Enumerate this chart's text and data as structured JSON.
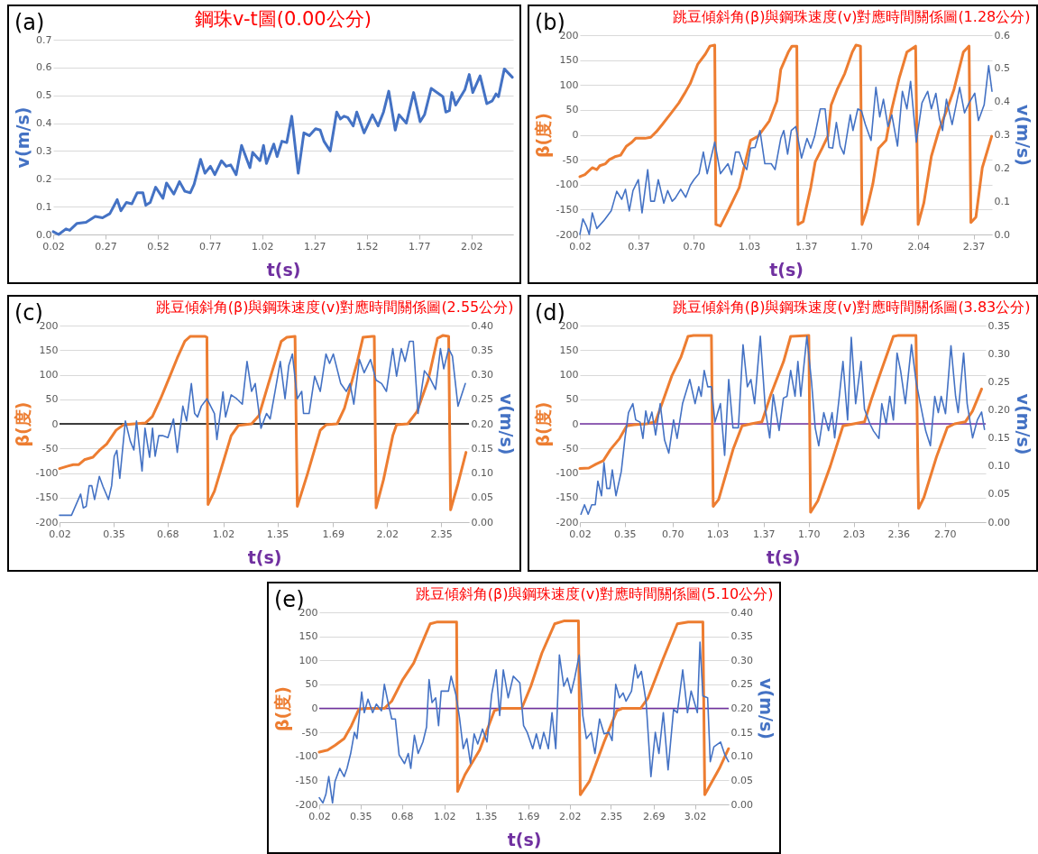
{
  "chart_data": [
    {
      "type": "line",
      "title": "鋼珠v-t圖(0.00公分)",
      "xlabel": "t(s)",
      "ylabel": "v(m/s)",
      "annotations": [
        "(a)"
      ],
      "grid": "y",
      "xlim": [
        0.02,
        2.22
      ],
      "xticks": [
        0.02,
        0.27,
        0.52,
        0.77,
        1.02,
        1.27,
        1.52,
        1.77,
        2.02
      ],
      "ylim": [
        0,
        0.7
      ],
      "yticks": [
        {
          "value": 0,
          "label": "0.0"
        },
        0.1,
        0.2,
        0.3,
        0.4,
        0.5,
        0.6,
        0.7
      ],
      "series": [
        {
          "color": "#4472c4",
          "x": [
            0.02,
            0.046,
            0.081,
            0.099,
            0.134,
            0.177,
            0.221,
            0.256,
            0.291,
            0.326,
            0.344,
            0.37,
            0.396,
            0.422,
            0.449,
            0.463,
            0.484,
            0.51,
            0.545,
            0.562,
            0.597,
            0.624,
            0.65,
            0.676,
            0.694,
            0.725,
            0.746,
            0.772,
            0.793,
            0.825,
            0.848,
            0.869,
            0.895,
            0.921,
            0.961,
            0.974,
            1.009,
            1.026,
            1.04,
            1.075,
            1.091,
            1.114,
            1.137,
            1.161,
            1.192,
            1.219,
            1.245,
            1.275,
            1.297,
            1.315,
            1.345,
            1.376,
            1.394,
            1.411,
            1.429,
            1.455,
            1.472,
            1.507,
            1.547,
            1.574,
            1.6,
            1.625,
            1.656,
            1.674,
            1.709,
            1.744,
            1.775,
            1.796,
            1.828,
            1.866,
            1.884,
            1.898,
            1.915,
            1.927,
            1.945,
            1.989,
            2.01,
            2.027,
            2.062,
            2.094,
            2.12,
            2.138,
            2.15,
            2.178,
            2.216
          ],
          "values": [
            0.01,
            0.0,
            0.02,
            0.015,
            0.04,
            0.044,
            0.065,
            0.06,
            0.075,
            0.125,
            0.085,
            0.115,
            0.11,
            0.15,
            0.15,
            0.105,
            0.115,
            0.17,
            0.13,
            0.185,
            0.145,
            0.19,
            0.155,
            0.15,
            0.18,
            0.27,
            0.22,
            0.245,
            0.215,
            0.265,
            0.245,
            0.25,
            0.215,
            0.32,
            0.24,
            0.295,
            0.265,
            0.32,
            0.255,
            0.325,
            0.28,
            0.335,
            0.33,
            0.425,
            0.22,
            0.365,
            0.355,
            0.38,
            0.375,
            0.335,
            0.3,
            0.44,
            0.415,
            0.425,
            0.42,
            0.39,
            0.44,
            0.365,
            0.43,
            0.39,
            0.44,
            0.515,
            0.375,
            0.43,
            0.4,
            0.51,
            0.405,
            0.43,
            0.525,
            0.505,
            0.495,
            0.44,
            0.445,
            0.51,
            0.465,
            0.52,
            0.575,
            0.51,
            0.57,
            0.47,
            0.48,
            0.505,
            0.495,
            0.595,
            0.565
          ]
        }
      ]
    },
    {
      "type": "line",
      "title": "跳豆傾斜角(β)與鋼珠速度(v)對應時間關係圖(1.28公分)",
      "xlabel": "t(s)",
      "ylabel": "β(度)",
      "y2label": "v(m/s)",
      "annotations": [
        "(b)"
      ],
      "grid": "y",
      "xlim": [
        0.02,
        2.48
      ],
      "xticks": [
        0.02,
        0.37,
        {
          "value": 0.7,
          "label": "0.70"
        },
        1.03,
        1.37,
        {
          "value": 1.7,
          "label": "1.70"
        },
        2.04,
        2.37
      ],
      "ylim": [
        -200,
        200
      ],
      "yticks": [
        -200,
        -150,
        -100,
        -50,
        0,
        50,
        100,
        150,
        200
      ],
      "y2lim": [
        0,
        0.6
      ],
      "y2ticks": [
        {
          "value": 0,
          "label": "0.0"
        },
        0.1,
        0.2,
        0.3,
        0.4,
        0.5,
        0.6
      ],
      "series": [
        {
          "color": "#ed7d31",
          "x": [
            0.02,
            0.05,
            0.094,
            0.121,
            0.139,
            0.173,
            0.195,
            0.229,
            0.263,
            0.297,
            0.33,
            0.353,
            0.409,
            0.443,
            0.476,
            0.51,
            0.566,
            0.611,
            0.645,
            0.679,
            0.724,
            0.769,
            0.796,
            0.825,
            0.832,
            0.859,
            0.904,
            0.971,
            1.039,
            1.084,
            1.151,
            1.196,
            1.219,
            1.264,
            1.286,
            1.315,
            1.322,
            1.353,
            1.398,
            1.425,
            1.466,
            1.5,
            1.52,
            1.556,
            1.601,
            1.646,
            1.668,
            1.695,
            1.704,
            1.731,
            1.769,
            1.803,
            1.848,
            1.882,
            1.927,
            1.972,
            2.024,
            2.039,
            2.073,
            2.118,
            2.163,
            2.208,
            2.253,
            2.309,
            2.343,
            2.354,
            2.384,
            2.422,
            2.478
          ],
          "values": [
            -84,
            -80,
            -66,
            -70,
            -62,
            -58,
            -50,
            -44,
            -41,
            -23,
            -15,
            -7,
            -7,
            -5,
            6,
            20,
            44,
            64,
            83,
            103,
            142,
            162,
            178,
            180,
            -180,
            -183,
            -153,
            -106,
            -11,
            -3,
            28,
            68,
            131,
            166,
            178,
            178,
            -180,
            -174,
            -106,
            -54,
            -27,
            -3,
            60,
            91,
            123,
            166,
            180,
            178,
            -180,
            -153,
            -98,
            -27,
            -11,
            52,
            115,
            166,
            178,
            -180,
            -137,
            -43,
            9,
            48,
            91,
            166,
            178,
            -176,
            -165,
            -66,
            -3
          ]
        },
        {
          "color": "#4472c4",
          "axis": "y2",
          "x": [
            0.02,
            0.038,
            0.06,
            0.076,
            0.094,
            0.121,
            0.162,
            0.207,
            0.24,
            0.27,
            0.292,
            0.315,
            0.337,
            0.369,
            0.391,
            0.425,
            0.443,
            0.465,
            0.488,
            0.521,
            0.544,
            0.571,
            0.589,
            0.622,
            0.652,
            0.679,
            0.701,
            0.731,
            0.757,
            0.78,
            0.825,
            0.859,
            0.904,
            0.926,
            0.949,
            0.971,
            0.994,
            1.016,
            1.039,
            1.066,
            1.095,
            1.124,
            1.162,
            1.185,
            1.219,
            1.237,
            1.26,
            1.282,
            1.309,
            1.343,
            1.376,
            1.398,
            1.421,
            1.455,
            1.484,
            1.506,
            1.529,
            1.551,
            1.574,
            1.596,
            1.634,
            1.65,
            1.679,
            1.701,
            1.724,
            1.758,
            1.787,
            1.81,
            1.832,
            1.859,
            1.882,
            1.916,
            1.945,
            1.972,
            1.994,
            2.028,
            2.062,
            2.096,
            2.118,
            2.145,
            2.167,
            2.185,
            2.208,
            2.242,
            2.287,
            2.316,
            2.343,
            2.377,
            2.399,
            2.433,
            2.46,
            2.48
          ],
          "values": [
            0.0,
            0.047,
            0.024,
            0.0,
            0.065,
            0.018,
            0.041,
            0.071,
            0.13,
            0.106,
            0.136,
            0.071,
            0.132,
            0.165,
            0.065,
            0.195,
            0.1,
            0.1,
            0.165,
            0.094,
            0.132,
            0.1,
            0.109,
            0.136,
            0.112,
            0.148,
            0.165,
            0.183,
            0.248,
            0.183,
            0.278,
            0.183,
            0.213,
            0.18,
            0.248,
            0.248,
            0.213,
            0.195,
            0.26,
            0.262,
            0.313,
            0.213,
            0.213,
            0.195,
            0.289,
            0.313,
            0.242,
            0.313,
            0.325,
            0.23,
            0.289,
            0.26,
            0.295,
            0.378,
            0.378,
            0.262,
            0.26,
            0.337,
            0.266,
            0.242,
            0.36,
            0.313,
            0.378,
            0.372,
            0.331,
            0.283,
            0.443,
            0.354,
            0.407,
            0.325,
            0.36,
            0.266,
            0.431,
            0.378,
            0.461,
            0.278,
            0.396,
            0.431,
            0.378,
            0.425,
            0.348,
            0.313,
            0.407,
            0.331,
            0.443,
            0.366,
            0.396,
            0.425,
            0.343,
            0.39,
            0.508,
            0.431
          ]
        }
      ]
    },
    {
      "type": "line",
      "title": "跳豆傾斜角(β)與鋼珠速度(v)對應時間關係圖(2.55公分)",
      "xlabel": "t(s)",
      "ylabel": "β(度)",
      "y2label": "v(m/s)",
      "annotations": [
        "(c)"
      ],
      "grid": "y",
      "xlim": [
        0.02,
        2.52
      ],
      "xticks": [
        0.02,
        0.35,
        0.68,
        1.02,
        1.35,
        1.69,
        2.02,
        2.35
      ],
      "ylim": [
        -200,
        200
      ],
      "yticks": [
        -200,
        -150,
        -100,
        -50,
        0,
        50,
        100,
        150,
        200
      ],
      "y2lim": [
        0,
        0.4
      ],
      "y2ticks": [
        {
          "value": 0,
          "label": "0.00"
        },
        0.05,
        {
          "value": 0.1,
          "label": "0.10"
        },
        0.15,
        {
          "value": 0.2,
          "label": "0.20"
        },
        0.25,
        {
          "value": 0.3,
          "label": "0.30"
        },
        0.35,
        {
          "value": 0.4,
          "label": "0.40"
        }
      ],
      "ref_lines": [
        {
          "axis": "y",
          "value": 0,
          "color": "#000000"
        }
      ],
      "series": [
        {
          "color": "#ed7d31",
          "x": [
            0.02,
            0.07,
            0.104,
            0.138,
            0.172,
            0.224,
            0.263,
            0.308,
            0.365,
            0.41,
            0.478,
            0.546,
            0.587,
            0.637,
            0.694,
            0.739,
            0.785,
            0.819,
            0.909,
            0.92,
            0.927,
            0.966,
            1.068,
            1.113,
            1.193,
            1.238,
            1.295,
            1.374,
            1.408,
            1.458,
            1.472,
            1.533,
            1.612,
            1.647,
            1.715,
            1.76,
            1.839,
            1.873,
            1.93,
            1.942,
            1.953,
            1.998,
            2.055,
            2.078,
            2.146,
            2.203,
            2.271,
            2.328,
            2.362,
            2.396,
            2.408,
            2.453,
            2.502
          ],
          "values": [
            -91,
            -86,
            -83,
            -83,
            -73,
            -68,
            -54,
            -41,
            -13,
            -2,
            0,
            2,
            15,
            51,
            97,
            134,
            168,
            178,
            178,
            176,
            -164,
            -137,
            -24,
            -3,
            0,
            17,
            81,
            168,
            176,
            178,
            -168,
            -103,
            -13,
            -2,
            0,
            32,
            127,
            176,
            178,
            178,
            -171,
            -114,
            -24,
            -2,
            0,
            25,
            89,
            174,
            180,
            178,
            -175,
            -122,
            -58
          ]
        },
        {
          "color": "#4472c4",
          "axis": "y2",
          "x": [
            0.02,
            0.093,
            0.149,
            0.165,
            0.183,
            0.201,
            0.217,
            0.234,
            0.263,
            0.286,
            0.319,
            0.338,
            0.354,
            0.37,
            0.388,
            0.422,
            0.452,
            0.474,
            0.49,
            0.524,
            0.542,
            0.57,
            0.588,
            0.604,
            0.626,
            0.649,
            0.682,
            0.716,
            0.739,
            0.773,
            0.796,
            0.825,
            0.845,
            0.863,
            0.886,
            0.92,
            0.966,
            0.981,
            1.018,
            1.034,
            1.068,
            1.102,
            1.136,
            1.165,
            1.193,
            1.215,
            1.25,
            1.284,
            1.306,
            1.336,
            1.368,
            1.397,
            1.42,
            1.442,
            1.472,
            1.499,
            1.51,
            1.544,
            1.578,
            1.612,
            1.647,
            1.669,
            1.692,
            1.737,
            1.771,
            1.794,
            1.817,
            1.851,
            1.88,
            1.919,
            1.953,
            1.987,
            2.016,
            2.055,
            2.078,
            2.107,
            2.13,
            2.157,
            2.18,
            2.209,
            2.248,
            2.282,
            2.316,
            2.346,
            2.366,
            2.396,
            2.419,
            2.453,
            2.498
          ],
          "values": [
            0.014,
            0.014,
            0.057,
            0.029,
            0.032,
            0.074,
            0.074,
            0.046,
            0.093,
            0.072,
            0.046,
            0.074,
            0.134,
            0.146,
            0.089,
            0.206,
            0.165,
            0.147,
            0.206,
            0.104,
            0.191,
            0.132,
            0.191,
            0.134,
            0.176,
            0.176,
            0.172,
            0.21,
            0.142,
            0.236,
            0.206,
            0.282,
            0.221,
            0.214,
            0.236,
            0.251,
            0.221,
            0.168,
            0.265,
            0.214,
            0.259,
            0.251,
            0.24,
            0.327,
            0.266,
            0.282,
            0.191,
            0.221,
            0.21,
            0.266,
            0.327,
            0.251,
            0.319,
            0.342,
            0.251,
            0.266,
            0.221,
            0.221,
            0.297,
            0.266,
            0.342,
            0.323,
            0.342,
            0.282,
            0.266,
            0.282,
            0.24,
            0.331,
            0.304,
            0.331,
            0.289,
            0.282,
            0.266,
            0.353,
            0.297,
            0.353,
            0.327,
            0.368,
            0.368,
            0.221,
            0.308,
            0.293,
            0.27,
            0.353,
            0.312,
            0.353,
            0.338,
            0.236,
            0.282
          ]
        }
      ]
    },
    {
      "type": "line",
      "title": "跳豆傾斜角(β)與鋼珠速度(v)對應時間關係圖(3.83公分)",
      "xlabel": "t(s)",
      "ylabel": "β(度)",
      "y2label": "v(m/s)",
      "annotations": [
        "(d)"
      ],
      "grid": "y",
      "xlim": [
        0.02,
        3.0
      ],
      "xticks": [
        0.02,
        0.35,
        {
          "value": 0.7,
          "label": "0.70"
        },
        1.03,
        1.37,
        {
          "value": 1.7,
          "label": "1.70"
        },
        2.03,
        2.36,
        {
          "value": 2.7,
          "label": "2.70"
        }
      ],
      "ylim": [
        -200,
        200
      ],
      "yticks": [
        -200,
        -150,
        -100,
        -50,
        0,
        50,
        100,
        150,
        200
      ],
      "y2lim": [
        0,
        0.35
      ],
      "y2ticks": [
        {
          "value": 0,
          "label": "0.00"
        },
        0.05,
        {
          "value": 0.1,
          "label": "0.10"
        },
        0.15,
        {
          "value": 0.2,
          "label": "0.20"
        },
        0.25,
        {
          "value": 0.3,
          "label": "0.30"
        },
        0.35
      ],
      "ref_lines": [
        {
          "axis": "y",
          "value": 0,
          "color": "#7030a0"
        }
      ],
      "series": [
        {
          "color": "#ed7d31",
          "x": [
            0.02,
            0.086,
            0.139,
            0.192,
            0.245,
            0.311,
            0.364,
            0.417,
            0.509,
            0.575,
            0.628,
            0.694,
            0.761,
            0.814,
            0.854,
            0.986,
            0.999,
            1.039,
            1.145,
            1.211,
            1.277,
            1.357,
            1.423,
            1.516,
            1.568,
            1.701,
            1.714,
            1.767,
            1.859,
            1.952,
            2.031,
            2.11,
            2.163,
            2.229,
            2.322,
            2.361,
            2.488,
            2.507,
            2.546,
            2.639,
            2.719,
            2.772,
            2.85,
            2.903,
            2.97
          ],
          "values": [
            -91,
            -90,
            -82,
            -75,
            -52,
            -30,
            -4,
            -2,
            0,
            4,
            45,
            97,
            135,
            178,
            180,
            180,
            -168,
            -154,
            -52,
            -4,
            0,
            4,
            60,
            127,
            178,
            180,
            -180,
            -157,
            -86,
            -4,
            0,
            4,
            52,
            105,
            178,
            180,
            180,
            -172,
            -150,
            -67,
            -7,
            0,
            4,
            26,
            71
          ]
        },
        {
          "color": "#4472c4",
          "axis": "y2",
          "x": [
            0.028,
            0.054,
            0.081,
            0.107,
            0.133,
            0.152,
            0.179,
            0.197,
            0.218,
            0.24,
            0.258,
            0.285,
            0.324,
            0.351,
            0.377,
            0.409,
            0.43,
            0.462,
            0.483,
            0.504,
            0.523,
            0.549,
            0.576,
            0.61,
            0.642,
            0.673,
            0.708,
            0.734,
            0.774,
            0.827,
            0.866,
            0.893,
            0.911,
            0.933,
            0.959,
            0.986,
            1.012,
            1.052,
            1.083,
            1.113,
            1.144,
            1.184,
            1.218,
            1.25,
            1.276,
            1.303,
            1.345,
            1.382,
            1.414,
            1.44,
            1.483,
            1.515,
            1.541,
            1.568,
            1.6,
            1.621,
            1.642,
            1.687,
            1.721,
            1.748,
            1.774,
            1.811,
            1.846,
            1.872,
            1.891,
            1.925,
            1.952,
            1.986,
            2.013,
            2.045,
            2.085,
            2.11,
            2.15,
            2.177,
            2.216,
            2.237,
            2.269,
            2.296,
            2.322,
            2.349,
            2.375,
            2.41,
            2.455,
            2.489,
            2.52,
            2.56,
            2.594,
            2.626,
            2.652,
            2.673,
            2.705,
            2.745,
            2.779,
            2.798,
            2.838,
            2.864,
            2.904,
            2.939,
            2.97,
            2.991
          ],
          "values": [
            0.014,
            0.031,
            0.014,
            0.031,
            0.031,
            0.073,
            0.047,
            0.106,
            0.06,
            0.06,
            0.093,
            0.047,
            0.09,
            0.149,
            0.195,
            0.211,
            0.182,
            0.178,
            0.149,
            0.198,
            0.175,
            0.196,
            0.155,
            0.211,
            0.146,
            0.123,
            0.182,
            0.149,
            0.211,
            0.254,
            0.211,
            0.241,
            0.224,
            0.27,
            0.241,
            0.241,
            0.178,
            0.211,
            0.119,
            0.254,
            0.168,
            0.168,
            0.316,
            0.241,
            0.254,
            0.211,
            0.331,
            0.201,
            0.15,
            0.227,
            0.163,
            0.221,
            0.224,
            0.27,
            0.224,
            0.286,
            0.224,
            0.331,
            0.25,
            0.168,
            0.136,
            0.195,
            0.163,
            0.195,
            0.15,
            0.224,
            0.286,
            0.182,
            0.329,
            0.211,
            0.286,
            0.201,
            0.175,
            0.162,
            0.149,
            0.211,
            0.175,
            0.224,
            0.182,
            0.301,
            0.27,
            0.211,
            0.316,
            0.25,
            0.211,
            0.162,
            0.136,
            0.224,
            0.195,
            0.224,
            0.193,
            0.314,
            0.224,
            0.195,
            0.301,
            0.211,
            0.15,
            0.182,
            0.196,
            0.165
          ]
        }
      ]
    },
    {
      "type": "line",
      "title": "跳豆傾斜角(β)與鋼珠速度(v)對應時間關係圖(5.10公分)",
      "xlabel": "t(s)",
      "ylabel": "β(度)",
      "y2label": "v(m/s)",
      "annotations": [
        "(e)"
      ],
      "grid": "y",
      "xlim": [
        0.02,
        3.29
      ],
      "xticks": [
        0.02,
        0.35,
        0.68,
        1.02,
        1.35,
        1.69,
        2.02,
        2.35,
        2.69,
        3.02
      ],
      "ylim": [
        -200,
        200
      ],
      "yticks": [
        -200,
        -150,
        -100,
        -50,
        0,
        50,
        100,
        150,
        200
      ],
      "y2lim": [
        0,
        0.4
      ],
      "y2ticks": [
        {
          "value": 0,
          "label": "0.00"
        },
        0.05,
        {
          "value": 0.1,
          "label": "0.10"
        },
        0.15,
        {
          "value": 0.2,
          "label": "0.20"
        },
        0.25,
        {
          "value": 0.3,
          "label": "0.30"
        },
        0.35,
        {
          "value": 0.4,
          "label": "0.40"
        }
      ],
      "ref_lines": [
        {
          "axis": "y",
          "value": 0,
          "color": "#7030a0"
        }
      ],
      "series": [
        {
          "color": "#ed7d31",
          "x": [
            0.02,
            0.087,
            0.146,
            0.219,
            0.277,
            0.336,
            0.394,
            0.54,
            0.599,
            0.687,
            0.774,
            0.862,
            0.906,
            0.964,
            1.117,
            1.125,
            1.184,
            1.301,
            1.418,
            1.476,
            1.637,
            1.71,
            1.798,
            1.9,
            1.973,
            2.09,
            2.105,
            2.178,
            2.295,
            2.397,
            2.441,
            2.587,
            2.646,
            2.763,
            2.88,
            2.967,
            3.084,
            3.099,
            3.143,
            3.216,
            3.289
          ],
          "values": [
            -91,
            -87,
            -77,
            -63,
            -36,
            -2,
            0,
            0,
            15,
            60,
            94,
            149,
            176,
            180,
            180,
            -173,
            -138,
            -87,
            -5,
            0,
            0,
            46,
            115,
            176,
            182,
            182,
            -180,
            -152,
            -70,
            -5,
            0,
            0,
            22,
            101,
            176,
            180,
            180,
            -180,
            -159,
            -125,
            -84
          ]
        },
        {
          "color": "#4472c4",
          "axis": "y2",
          "x": [
            0.02,
            0.049,
            0.073,
            0.096,
            0.126,
            0.146,
            0.184,
            0.219,
            0.242,
            0.271,
            0.301,
            0.321,
            0.359,
            0.38,
            0.409,
            0.447,
            0.476,
            0.517,
            0.54,
            0.57,
            0.599,
            0.628,
            0.658,
            0.701,
            0.731,
            0.751,
            0.78,
            0.81,
            0.848,
            0.877,
            0.897,
            0.921,
            0.95,
            0.973,
            0.994,
            1.052,
            1.073,
            1.111,
            1.14,
            1.17,
            1.199,
            1.228,
            1.257,
            1.286,
            1.324,
            1.36,
            1.397,
            1.433,
            1.461,
            1.49,
            1.529,
            1.57,
            1.622,
            1.652,
            1.681,
            1.725,
            1.754,
            1.784,
            1.813,
            1.85,
            1.879,
            1.909,
            1.938,
            1.973,
            2.002,
            2.031,
            2.06,
            2.096,
            2.125,
            2.154,
            2.192,
            2.222,
            2.259,
            2.295,
            2.333,
            2.359,
            2.388,
            2.418,
            2.447,
            2.47,
            2.514,
            2.543,
            2.564,
            2.593,
            2.631,
            2.669,
            2.704,
            2.733,
            2.768,
            2.806,
            2.85,
            2.88,
            2.923,
            2.961,
            2.99,
            3.04,
            3.061,
            3.084,
            3.122,
            3.143,
            3.172,
            3.225,
            3.26,
            3.289
          ],
          "values": [
            0.014,
            0.003,
            0.021,
            0.058,
            0.003,
            0.048,
            0.075,
            0.058,
            0.075,
            0.106,
            0.15,
            0.137,
            0.234,
            0.191,
            0.219,
            0.191,
            0.209,
            0.195,
            0.25,
            0.212,
            0.178,
            0.178,
            0.103,
            0.085,
            0.106,
            0.075,
            0.144,
            0.106,
            0.13,
            0.161,
            0.26,
            0.212,
            0.222,
            0.164,
            0.236,
            0.236,
            0.267,
            0.229,
            0.181,
            0.116,
            0.137,
            0.085,
            0.147,
            0.126,
            0.157,
            0.13,
            0.229,
            0.28,
            0.185,
            0.28,
            0.222,
            0.267,
            0.253,
            0.164,
            0.15,
            0.116,
            0.147,
            0.116,
            0.15,
            0.116,
            0.191,
            0.116,
            0.311,
            0.246,
            0.263,
            0.232,
            0.263,
            0.311,
            0.185,
            0.137,
            0.15,
            0.106,
            0.178,
            0.147,
            0.15,
            0.133,
            0.25,
            0.222,
            0.232,
            0.215,
            0.236,
            0.291,
            0.263,
            0.277,
            0.212,
            0.058,
            0.15,
            0.106,
            0.191,
            0.072,
            0.198,
            0.191,
            0.28,
            0.191,
            0.236,
            0.191,
            0.338,
            0.226,
            0.222,
            0.089,
            0.12,
            0.13,
            0.103,
            0.089
          ]
        }
      ]
    }
  ]
}
